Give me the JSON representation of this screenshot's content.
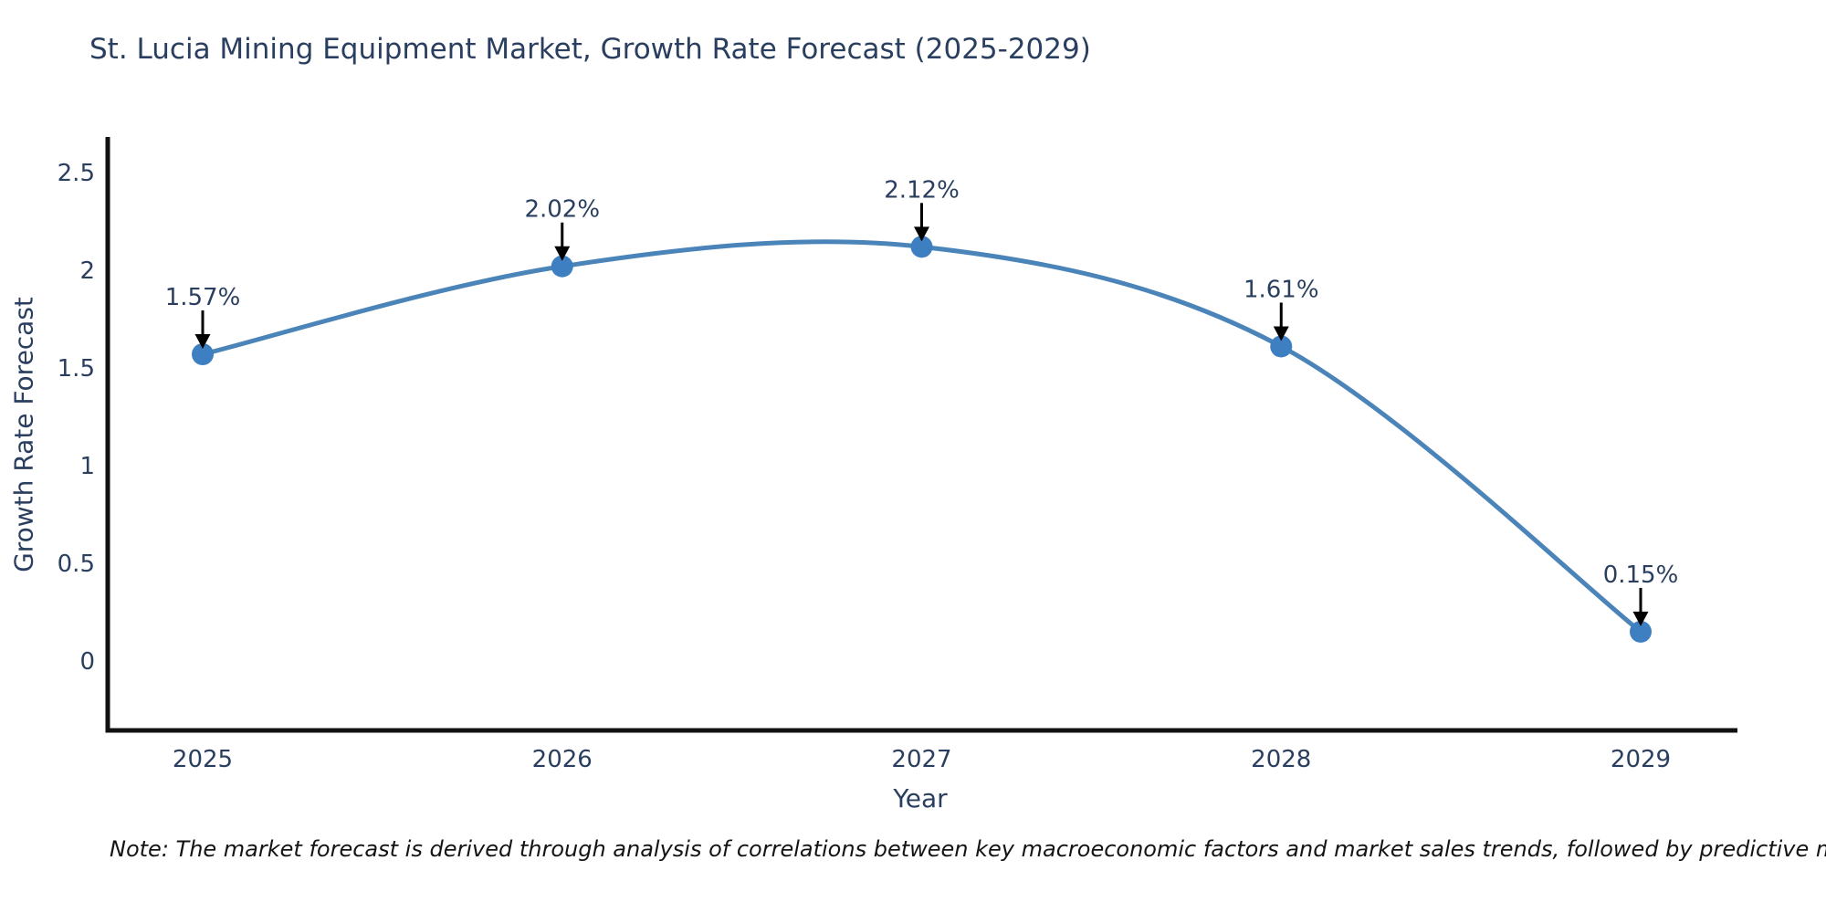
{
  "title": "St. Lucia Mining Equipment Market, Growth Rate Forecast (2025-2029)",
  "footnote": "Note: The market forecast is derived through analysis of correlations between key macroeconomic factors and market sales trends, followed by predictive modeling to project future sales",
  "chart_data": {
    "type": "line",
    "line_shape": "spline",
    "title": "St. Lucia Mining Equipment Market, Growth Rate Forecast (2025-2029)",
    "xlabel": "Year",
    "ylabel": "Growth Rate Forecast",
    "x": [
      2025,
      2026,
      2027,
      2028,
      2029
    ],
    "values": [
      1.57,
      2.02,
      2.12,
      1.61,
      0.15
    ],
    "point_labels": [
      "1.57%",
      "2.02%",
      "2.12%",
      "1.61%",
      "0.15%"
    ],
    "x_tick_labels": [
      "2025",
      "2026",
      "2027",
      "2028",
      "2029"
    ],
    "y_ticks": [
      0,
      0.5,
      1,
      1.5,
      2,
      2.5
    ],
    "ylim": [
      -0.36,
      2.68
    ],
    "grid": false,
    "legend": "none",
    "annotations_have_arrows": true,
    "colors": {
      "line": "#4a84b8",
      "marker": "#3d7fc1",
      "axis_spine": "#111111",
      "tick_text": "#2a3f5f",
      "title_text": "#2a3f5f",
      "annotation_text": "#2a3f5f",
      "annotation_arrow": "#000000",
      "background": "#ffffff"
    }
  }
}
